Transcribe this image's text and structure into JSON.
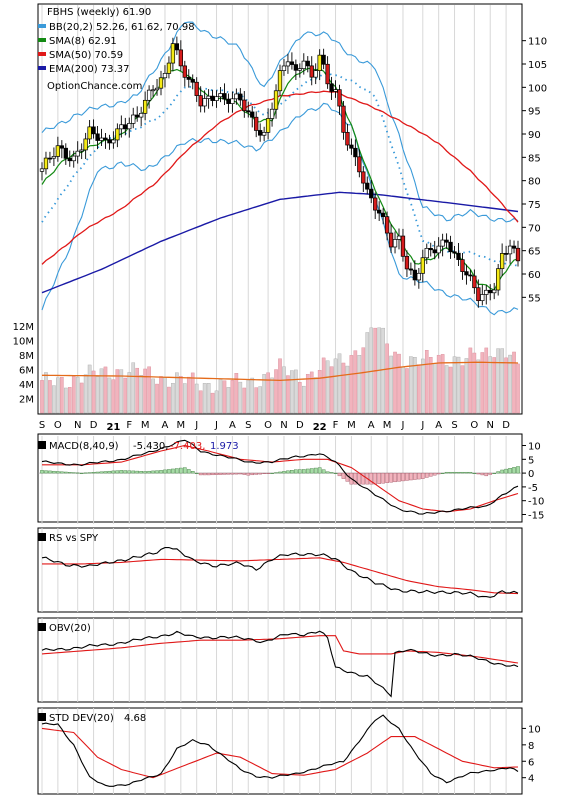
{
  "chart_data": [
    {
      "type": "line",
      "panel": "price",
      "title": "FBHS (weekly) 61.90",
      "watermark": "OptionChance.com",
      "legend": [
        {
          "label": "BB(20,2) 52.26, 61.62, 70.98",
          "color": "#3a9ad9"
        },
        {
          "label": "SMA(8) 62.91",
          "color": "#138a13"
        },
        {
          "label": "SMA(50) 70.59",
          "color": "#e01818"
        },
        {
          "label": "EMA(200) 73.37",
          "color": "#1a1aa6"
        }
      ],
      "y_ticks": [
        55,
        60,
        65,
        70,
        75,
        80,
        85,
        90,
        95,
        100,
        105,
        110
      ],
      "ylim": [
        48,
        114
      ],
      "volume_ticks": [
        "2M",
        "4M",
        "6M",
        "8M",
        "10M",
        "12M"
      ],
      "volume_max": 12,
      "x_labels": [
        "S",
        "O",
        "N",
        "D",
        "21",
        "F",
        "M",
        "A",
        "M",
        "J",
        "J",
        "A",
        "S",
        "O",
        "N",
        "D",
        "22",
        "F",
        "M",
        "A",
        "M",
        "J",
        "J",
        "A",
        "S",
        "O",
        "N",
        "D"
      ],
      "x_weeks": [
        0,
        4,
        9,
        13,
        18,
        22,
        26,
        31,
        35,
        39,
        44,
        48,
        52,
        57,
        61,
        65,
        70,
        74,
        78,
        83,
        87,
        91,
        96,
        100,
        104,
        109,
        113,
        117
      ],
      "weeks": 121,
      "close_anchors": [
        [
          0,
          82
        ],
        [
          4,
          87
        ],
        [
          8,
          85
        ],
        [
          12,
          90
        ],
        [
          16,
          88
        ],
        [
          20,
          92
        ],
        [
          24,
          93
        ],
        [
          28,
          100
        ],
        [
          31,
          103
        ],
        [
          33,
          110
        ],
        [
          35,
          104
        ],
        [
          37,
          101
        ],
        [
          40,
          97
        ],
        [
          44,
          99
        ],
        [
          46,
          97
        ],
        [
          50,
          97
        ],
        [
          54,
          92
        ],
        [
          56,
          90
        ],
        [
          58,
          96
        ],
        [
          60,
          102
        ],
        [
          62,
          106
        ],
        [
          64,
          103
        ],
        [
          66,
          107
        ],
        [
          68,
          102
        ],
        [
          70,
          107
        ],
        [
          72,
          100
        ],
        [
          74,
          99
        ],
        [
          76,
          91
        ],
        [
          78,
          87
        ],
        [
          80,
          83
        ],
        [
          82,
          77
        ],
        [
          84,
          74
        ],
        [
          86,
          71
        ],
        [
          88,
          67
        ],
        [
          90,
          68
        ],
        [
          92,
          62
        ],
        [
          94,
          58
        ],
        [
          96,
          63
        ],
        [
          98,
          65
        ],
        [
          100,
          66
        ],
        [
          102,
          68
        ],
        [
          104,
          64
        ],
        [
          106,
          61
        ],
        [
          108,
          58
        ],
        [
          110,
          55
        ],
        [
          112,
          56
        ],
        [
          114,
          58
        ],
        [
          116,
          64
        ],
        [
          118,
          66
        ],
        [
          120,
          62
        ]
      ],
      "sma8_anchors": [
        [
          0,
          79
        ],
        [
          6,
          85
        ],
        [
          12,
          87
        ],
        [
          20,
          90
        ],
        [
          26,
          95
        ],
        [
          32,
          104
        ],
        [
          36,
          103
        ],
        [
          42,
          98
        ],
        [
          48,
          97
        ],
        [
          54,
          93
        ],
        [
          58,
          93
        ],
        [
          62,
          101
        ],
        [
          66,
          104
        ],
        [
          70,
          104
        ],
        [
          74,
          100
        ],
        [
          78,
          92
        ],
        [
          82,
          82
        ],
        [
          86,
          74
        ],
        [
          90,
          68
        ],
        [
          94,
          62
        ],
        [
          98,
          63
        ],
        [
          102,
          66
        ],
        [
          106,
          63
        ],
        [
          110,
          58
        ],
        [
          114,
          57
        ],
        [
          118,
          62
        ],
        [
          120,
          63
        ]
      ],
      "sma50_anchors": [
        [
          0,
          62
        ],
        [
          10,
          69
        ],
        [
          20,
          74
        ],
        [
          28,
          79
        ],
        [
          36,
          86
        ],
        [
          44,
          92
        ],
        [
          52,
          96
        ],
        [
          60,
          98
        ],
        [
          68,
          99
        ],
        [
          74,
          99
        ],
        [
          80,
          97
        ],
        [
          90,
          93
        ],
        [
          100,
          88
        ],
        [
          108,
          82
        ],
        [
          114,
          77
        ],
        [
          120,
          71
        ]
      ],
      "ema200_anchors": [
        [
          0,
          56
        ],
        [
          15,
          61
        ],
        [
          30,
          67
        ],
        [
          45,
          72
        ],
        [
          60,
          76
        ],
        [
          75,
          77.5
        ],
        [
          85,
          77
        ],
        [
          100,
          75.5
        ],
        [
          120,
          73.4
        ]
      ],
      "bb_upper_anchors": [
        [
          0,
          90
        ],
        [
          8,
          94
        ],
        [
          16,
          96
        ],
        [
          24,
          98
        ],
        [
          30,
          106
        ],
        [
          36,
          114
        ],
        [
          44,
          111
        ],
        [
          50,
          108
        ],
        [
          56,
          100
        ],
        [
          60,
          105
        ],
        [
          66,
          112
        ],
        [
          72,
          111
        ],
        [
          78,
          107
        ],
        [
          84,
          104
        ],
        [
          90,
          90
        ],
        [
          96,
          74
        ],
        [
          102,
          72
        ],
        [
          108,
          73
        ],
        [
          114,
          72
        ],
        [
          120,
          71
        ]
      ],
      "bb_lower_anchors": [
        [
          0,
          52
        ],
        [
          8,
          68
        ],
        [
          14,
          82
        ],
        [
          20,
          84
        ],
        [
          26,
          82
        ],
        [
          32,
          86
        ],
        [
          36,
          88
        ],
        [
          42,
          89
        ],
        [
          48,
          88
        ],
        [
          54,
          87
        ],
        [
          60,
          90
        ],
        [
          66,
          95
        ],
        [
          72,
          96
        ],
        [
          78,
          92
        ],
        [
          84,
          76
        ],
        [
          90,
          60
        ],
        [
          96,
          58
        ],
        [
          102,
          56
        ],
        [
          108,
          54
        ],
        [
          114,
          52
        ],
        [
          120,
          52
        ]
      ],
      "volume_anchors": [
        [
          0,
          4
        ],
        [
          10,
          5
        ],
        [
          20,
          6
        ],
        [
          30,
          5
        ],
        [
          40,
          4
        ],
        [
          50,
          4
        ],
        [
          56,
          5
        ],
        [
          60,
          6
        ],
        [
          66,
          5
        ],
        [
          70,
          6
        ],
        [
          74,
          7
        ],
        [
          78,
          8
        ],
        [
          82,
          10
        ],
        [
          84,
          12
        ],
        [
          88,
          9
        ],
        [
          92,
          7
        ],
        [
          96,
          7
        ],
        [
          100,
          8
        ],
        [
          106,
          7
        ],
        [
          110,
          8
        ],
        [
          114,
          9
        ],
        [
          118,
          8
        ],
        [
          120,
          6
        ]
      ],
      "volume_ma_anchors": [
        [
          0,
          5.2
        ],
        [
          20,
          5.1
        ],
        [
          40,
          4.8
        ],
        [
          60,
          4.5
        ],
        [
          70,
          4.8
        ],
        [
          80,
          5.5
        ],
        [
          90,
          6.3
        ],
        [
          100,
          6.9
        ],
        [
          110,
          7
        ],
        [
          120,
          6.9
        ]
      ]
    },
    {
      "type": "line",
      "panel": "macd",
      "title_label": "MACD(8,40,9)",
      "macd_value": "-5.430,",
      "signal_value": "-7.403,",
      "hist_value": "1.973",
      "y_ticks": [
        10,
        5,
        0,
        -5,
        -10,
        -15
      ],
      "ylim": [
        -17,
        12
      ],
      "macd_anchors": [
        [
          0,
          4
        ],
        [
          10,
          3
        ],
        [
          20,
          5
        ],
        [
          26,
          7
        ],
        [
          32,
          10
        ],
        [
          36,
          12
        ],
        [
          40,
          8
        ],
        [
          46,
          6
        ],
        [
          52,
          4
        ],
        [
          58,
          4
        ],
        [
          64,
          6
        ],
        [
          70,
          7
        ],
        [
          74,
          4
        ],
        [
          78,
          -2
        ],
        [
          84,
          -8
        ],
        [
          90,
          -13
        ],
        [
          96,
          -15
        ],
        [
          100,
          -14
        ],
        [
          106,
          -13
        ],
        [
          112,
          -12
        ],
        [
          116,
          -8
        ],
        [
          120,
          -5
        ]
      ],
      "signal_anchors": [
        [
          0,
          3
        ],
        [
          10,
          3
        ],
        [
          20,
          4
        ],
        [
          30,
          8
        ],
        [
          36,
          10
        ],
        [
          42,
          8
        ],
        [
          50,
          5
        ],
        [
          58,
          4
        ],
        [
          66,
          5
        ],
        [
          72,
          5
        ],
        [
          78,
          2
        ],
        [
          84,
          -4
        ],
        [
          90,
          -10
        ],
        [
          96,
          -13
        ],
        [
          102,
          -14
        ],
        [
          108,
          -13
        ],
        [
          114,
          -10
        ],
        [
          120,
          -7.4
        ]
      ]
    },
    {
      "type": "line",
      "panel": "rs",
      "title_label": "RS vs SPY",
      "close_anchors": [
        [
          0,
          65
        ],
        [
          6,
          58
        ],
        [
          12,
          54
        ],
        [
          18,
          62
        ],
        [
          24,
          66
        ],
        [
          28,
          72
        ],
        [
          32,
          82
        ],
        [
          34,
          76
        ],
        [
          38,
          62
        ],
        [
          44,
          56
        ],
        [
          50,
          58
        ],
        [
          54,
          52
        ],
        [
          58,
          64
        ],
        [
          62,
          70
        ],
        [
          66,
          72
        ],
        [
          70,
          70
        ],
        [
          74,
          64
        ],
        [
          78,
          50
        ],
        [
          84,
          32
        ],
        [
          90,
          24
        ],
        [
          96,
          20
        ],
        [
          102,
          22
        ],
        [
          108,
          18
        ],
        [
          112,
          14
        ],
        [
          116,
          22
        ],
        [
          120,
          18
        ]
      ],
      "avg_anchors": [
        [
          0,
          58
        ],
        [
          10,
          58
        ],
        [
          20,
          60
        ],
        [
          30,
          64
        ],
        [
          40,
          63
        ],
        [
          50,
          62
        ],
        [
          60,
          64
        ],
        [
          70,
          66
        ],
        [
          76,
          60
        ],
        [
          84,
          48
        ],
        [
          92,
          36
        ],
        [
          100,
          28
        ],
        [
          108,
          24
        ],
        [
          114,
          20
        ],
        [
          120,
          19
        ]
      ]
    },
    {
      "type": "line",
      "panel": "obv",
      "title_label": "OBV(20)",
      "close_anchors": [
        [
          0,
          62
        ],
        [
          8,
          66
        ],
        [
          16,
          70
        ],
        [
          24,
          76
        ],
        [
          30,
          82
        ],
        [
          34,
          86
        ],
        [
          38,
          80
        ],
        [
          46,
          80
        ],
        [
          52,
          78
        ],
        [
          56,
          74
        ],
        [
          62,
          84
        ],
        [
          66,
          84
        ],
        [
          70,
          88
        ],
        [
          72,
          78
        ],
        [
          74,
          40
        ],
        [
          78,
          34
        ],
        [
          82,
          28
        ],
        [
          86,
          12
        ],
        [
          88,
          4
        ],
        [
          89,
          60
        ],
        [
          92,
          64
        ],
        [
          98,
          56
        ],
        [
          104,
          58
        ],
        [
          110,
          52
        ],
        [
          116,
          44
        ],
        [
          120,
          40
        ]
      ],
      "avg_anchors": [
        [
          0,
          58
        ],
        [
          10,
          62
        ],
        [
          20,
          66
        ],
        [
          30,
          72
        ],
        [
          40,
          76
        ],
        [
          50,
          76
        ],
        [
          60,
          78
        ],
        [
          70,
          82
        ],
        [
          74,
          82
        ],
        [
          76,
          62
        ],
        [
          80,
          58
        ],
        [
          88,
          58
        ],
        [
          92,
          62
        ],
        [
          100,
          60
        ],
        [
          110,
          54
        ],
        [
          120,
          46
        ]
      ]
    },
    {
      "type": "line",
      "panel": "std",
      "title_label": "STD DEV(20)",
      "title_value": "4.68",
      "y_ticks": [
        4,
        6,
        8,
        10
      ],
      "ylim": [
        2.5,
        12
      ],
      "close_anchors": [
        [
          0,
          10.5
        ],
        [
          4,
          10.5
        ],
        [
          8,
          8
        ],
        [
          12,
          4
        ],
        [
          16,
          3
        ],
        [
          22,
          3.2
        ],
        [
          30,
          4.5
        ],
        [
          34,
          7.5
        ],
        [
          38,
          8.5
        ],
        [
          42,
          8
        ],
        [
          46,
          6.5
        ],
        [
          50,
          5
        ],
        [
          54,
          4.2
        ],
        [
          58,
          4
        ],
        [
          64,
          4.5
        ],
        [
          68,
          5
        ],
        [
          72,
          5.5
        ],
        [
          76,
          6
        ],
        [
          80,
          8.5
        ],
        [
          84,
          11
        ],
        [
          86,
          11.5
        ],
        [
          90,
          10
        ],
        [
          94,
          7
        ],
        [
          98,
          4.5
        ],
        [
          102,
          3.5
        ],
        [
          108,
          4.5
        ],
        [
          114,
          5
        ],
        [
          118,
          5.2
        ],
        [
          120,
          4.68
        ]
      ],
      "avg_anchors": [
        [
          0,
          10
        ],
        [
          8,
          9.5
        ],
        [
          14,
          6.5
        ],
        [
          20,
          5
        ],
        [
          28,
          4
        ],
        [
          36,
          5.5
        ],
        [
          44,
          7
        ],
        [
          50,
          6.5
        ],
        [
          58,
          4.5
        ],
        [
          66,
          4.3
        ],
        [
          74,
          5
        ],
        [
          82,
          7
        ],
        [
          88,
          9
        ],
        [
          94,
          9
        ],
        [
          100,
          7.5
        ],
        [
          106,
          6
        ],
        [
          114,
          5.2
        ],
        [
          120,
          5.3
        ]
      ]
    }
  ]
}
